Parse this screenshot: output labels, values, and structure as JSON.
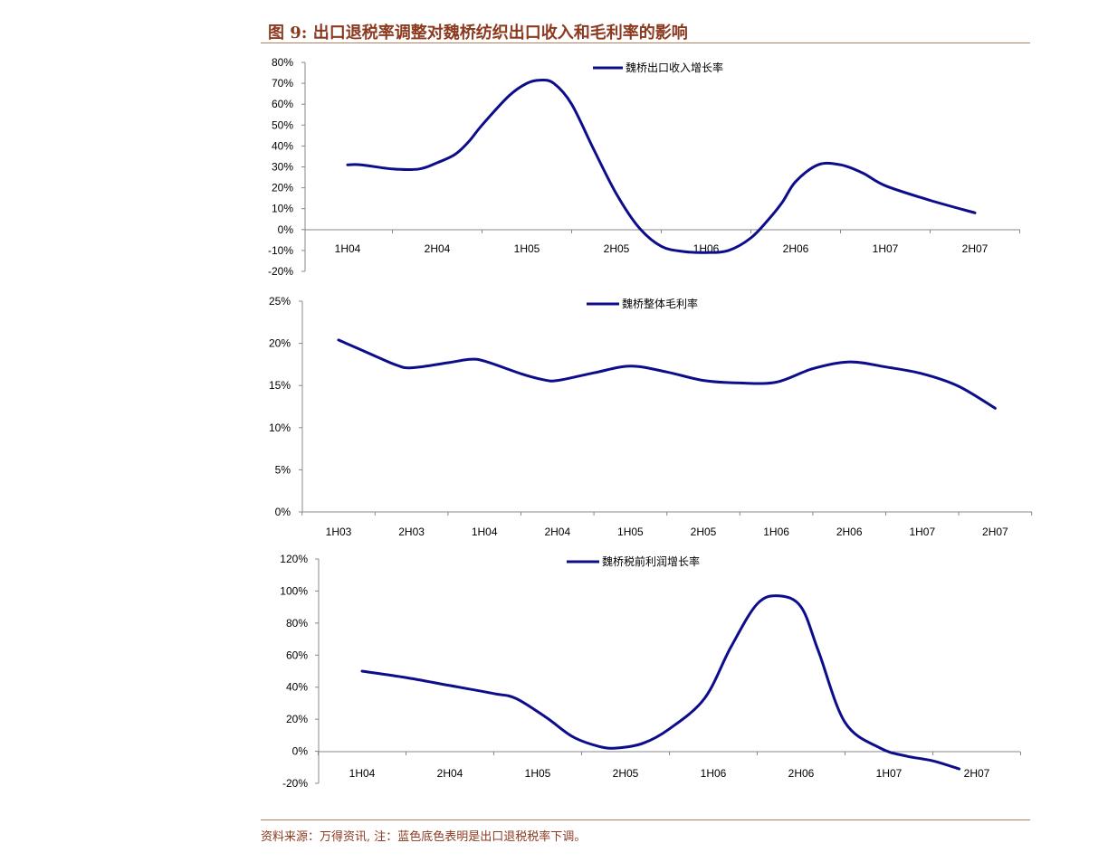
{
  "figure": {
    "title": "图 9:  出口退税率调整对魏桥纺织出口收入和毛利率的影响",
    "source": "资料来源：万得资讯, 注：蓝色底色表明是出口退税税率下调。"
  },
  "colors": {
    "series": "#0d0d8c",
    "axis": "#888888",
    "title": "#8b3a1f",
    "rule": "#b08060"
  },
  "chart_data": [
    {
      "type": "line",
      "title": "",
      "categories": [
        "1H04",
        "2H04",
        "1H05",
        "2H05",
        "1H06",
        "2H06",
        "1H07",
        "2H07"
      ],
      "yticks": [
        "80%",
        "70%",
        "60%",
        "50%",
        "40%",
        "30%",
        "20%",
        "10%",
        "0%",
        "-10%",
        "-20%"
      ],
      "ylim": [
        -20,
        80
      ],
      "legend_position": "top-center",
      "series": [
        {
          "name": "魏桥出口收入增长率",
          "x": [
            0,
            0.15,
            0.5,
            0.8,
            1.0,
            1.2,
            1.35,
            1.5,
            1.8,
            2.0,
            2.15,
            2.3,
            2.5,
            2.75,
            3.0,
            3.25,
            3.5,
            3.75,
            4.0,
            4.25,
            4.5,
            4.7,
            4.85,
            5.0,
            5.25,
            5.5,
            5.75,
            6.0,
            6.5,
            7.0
          ],
          "y": [
            31,
            31,
            29,
            29,
            32,
            36,
            42,
            50,
            64,
            70,
            71.5,
            70,
            60,
            38,
            17,
            1,
            -8,
            -10.5,
            -11,
            -10,
            -4,
            5,
            13,
            23,
            31,
            31,
            27,
            21,
            14,
            8
          ]
        }
      ]
    },
    {
      "type": "line",
      "title": "",
      "categories": [
        "1H03",
        "2H03",
        "1H04",
        "2H04",
        "1H05",
        "2H05",
        "1H06",
        "2H06",
        "1H07",
        "2H07"
      ],
      "yticks": [
        "25%",
        "20%",
        "15%",
        "10%",
        "5%",
        "0%"
      ],
      "ylim": [
        0,
        25
      ],
      "legend_position": "top-center",
      "series": [
        {
          "name": "魏桥整体毛利率",
          "x": [
            0,
            0.5,
            0.8,
            1.0,
            1.5,
            1.8,
            2.0,
            2.5,
            2.8,
            3.0,
            3.5,
            4.0,
            4.5,
            5.0,
            5.5,
            6.0,
            6.5,
            7.0,
            7.5,
            8.0,
            8.5,
            9.0
          ],
          "y": [
            20.4,
            18.5,
            17.4,
            17.1,
            17.7,
            18.1,
            17.9,
            16.4,
            15.7,
            15.6,
            16.5,
            17.3,
            16.6,
            15.6,
            15.3,
            15.4,
            17.0,
            17.8,
            17.2,
            16.4,
            14.9,
            12.3
          ]
        }
      ]
    },
    {
      "type": "line",
      "title": "",
      "categories": [
        "1H04",
        "2H04",
        "1H05",
        "2H05",
        "1H06",
        "2H06",
        "1H07",
        "2H07"
      ],
      "yticks": [
        "120%",
        "100%",
        "80%",
        "60%",
        "40%",
        "20%",
        "0%",
        "-20%"
      ],
      "ylim": [
        -20,
        120
      ],
      "legend_position": "top-center",
      "series": [
        {
          "name": "魏桥税前利润增长率",
          "x": [
            0,
            0.5,
            1.0,
            1.5,
            1.75,
            2.1,
            2.4,
            2.7,
            2.9,
            3.2,
            3.5,
            3.9,
            4.2,
            4.5,
            4.75,
            5.0,
            5.2,
            5.5,
            5.9,
            6.2,
            6.5,
            6.8
          ],
          "y": [
            50,
            46,
            41,
            36,
            33,
            21,
            9,
            3,
            2,
            5,
            14,
            33,
            65,
            92,
            97,
            90,
            62,
            18,
            2,
            -3,
            -6,
            -11
          ]
        }
      ]
    }
  ]
}
